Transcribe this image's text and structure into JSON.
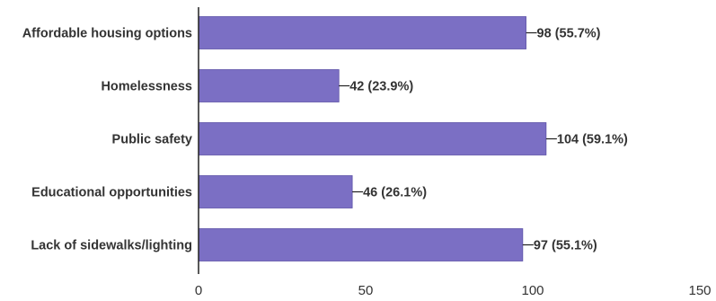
{
  "chart_data": {
    "type": "bar",
    "orientation": "horizontal",
    "categories": [
      "Affordable housing options",
      "Homelessness",
      "Public safety",
      "Educational opportunities",
      "Lack of sidewalks/lighting"
    ],
    "values": [
      98,
      42,
      104,
      46,
      97
    ],
    "value_labels": [
      "98 (55.7%)",
      "42 (23.9%)",
      "104 (59.1%)",
      "46 (26.1%)",
      "97 (55.1%)"
    ],
    "xlim": [
      0,
      150
    ],
    "xticks": [
      0,
      50,
      100,
      150
    ],
    "xtick_labels": [
      "0",
      "50",
      "100",
      "150"
    ],
    "grid": false,
    "colors": {
      "bar": "#7b6fc4",
      "bar_stroke": "#5e53a8",
      "axis": "#222222",
      "text": "#333333"
    }
  }
}
